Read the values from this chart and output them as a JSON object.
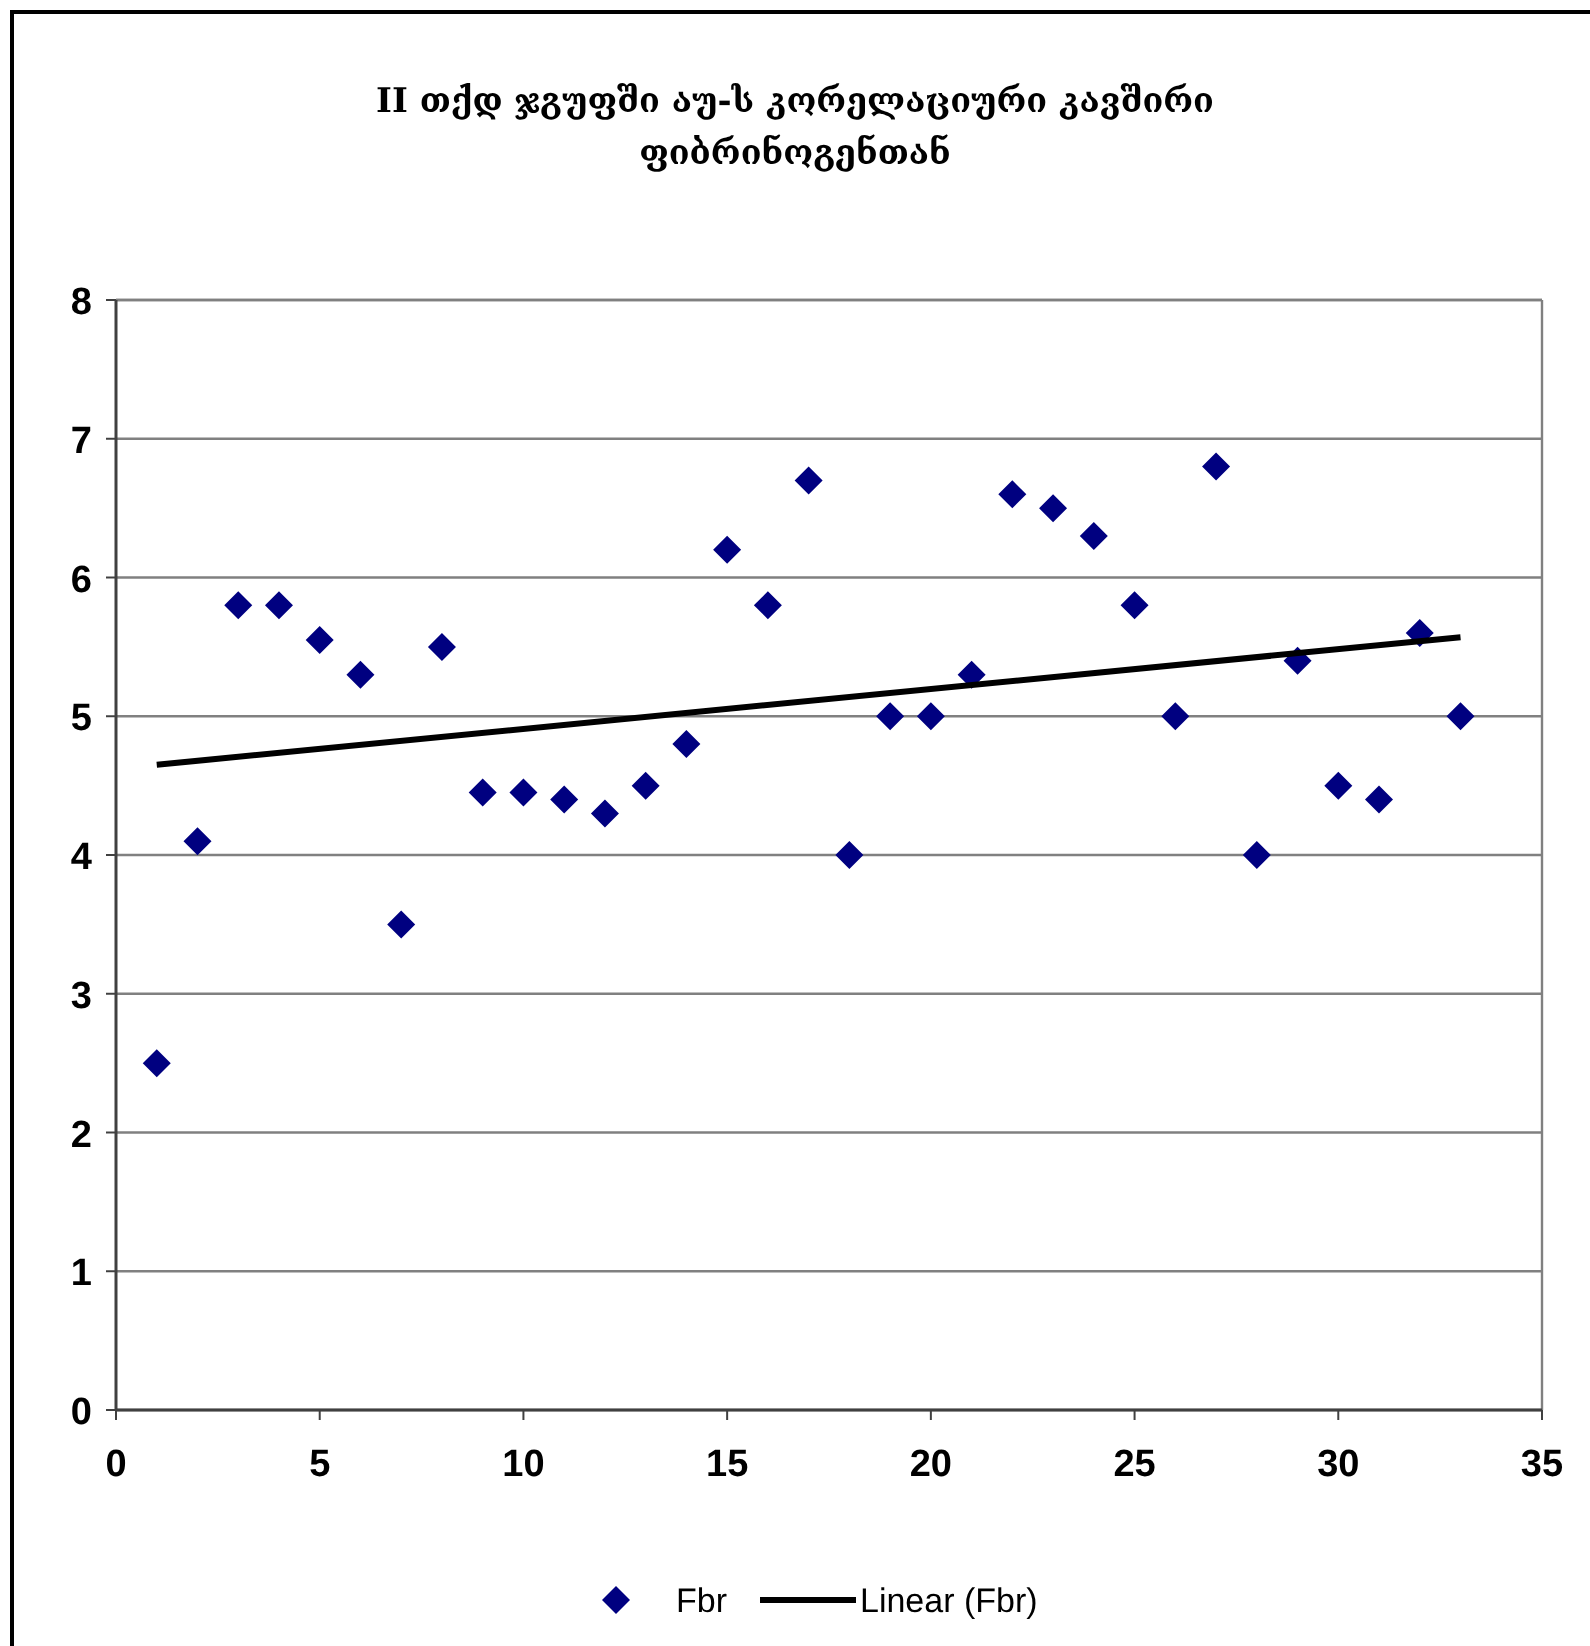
{
  "chart_data": {
    "type": "scatter",
    "title": "II თქდ ჯგუფში აუ-ს კორელაციური კავშირი ფიბრინოგენთან",
    "x": [
      1,
      2,
      3,
      4,
      5,
      6,
      7,
      8,
      9,
      10,
      11,
      12,
      13,
      14,
      15,
      16,
      17,
      18,
      19,
      20,
      21,
      22,
      23,
      24,
      25,
      26,
      27,
      28,
      29,
      30,
      31,
      32,
      33
    ],
    "series": [
      {
        "name": "Fbr",
        "color": "#000080",
        "marker": "diamond",
        "values": [
          2.5,
          4.1,
          5.8,
          5.8,
          5.55,
          5.3,
          3.5,
          5.5,
          4.45,
          4.45,
          4.4,
          4.3,
          4.5,
          4.8,
          6.2,
          5.8,
          6.7,
          4.0,
          5.0,
          5.0,
          5.3,
          6.6,
          6.5,
          6.3,
          5.8,
          5.0,
          6.8,
          4.0,
          5.4,
          4.5,
          4.4,
          5.6,
          5.0
        ]
      },
      {
        "name": "Linear (Fbr)",
        "type": "line",
        "color": "#000000",
        "x": [
          1,
          33
        ],
        "values": [
          4.65,
          5.57
        ]
      }
    ],
    "xlim": [
      0,
      35
    ],
    "xticks": [
      0,
      5,
      10,
      15,
      20,
      25,
      30,
      35
    ],
    "ylim": [
      0,
      8
    ],
    "yticks": [
      0,
      1,
      2,
      3,
      4,
      5,
      6,
      7,
      8
    ],
    "grid": "y",
    "legend": "bottom"
  }
}
